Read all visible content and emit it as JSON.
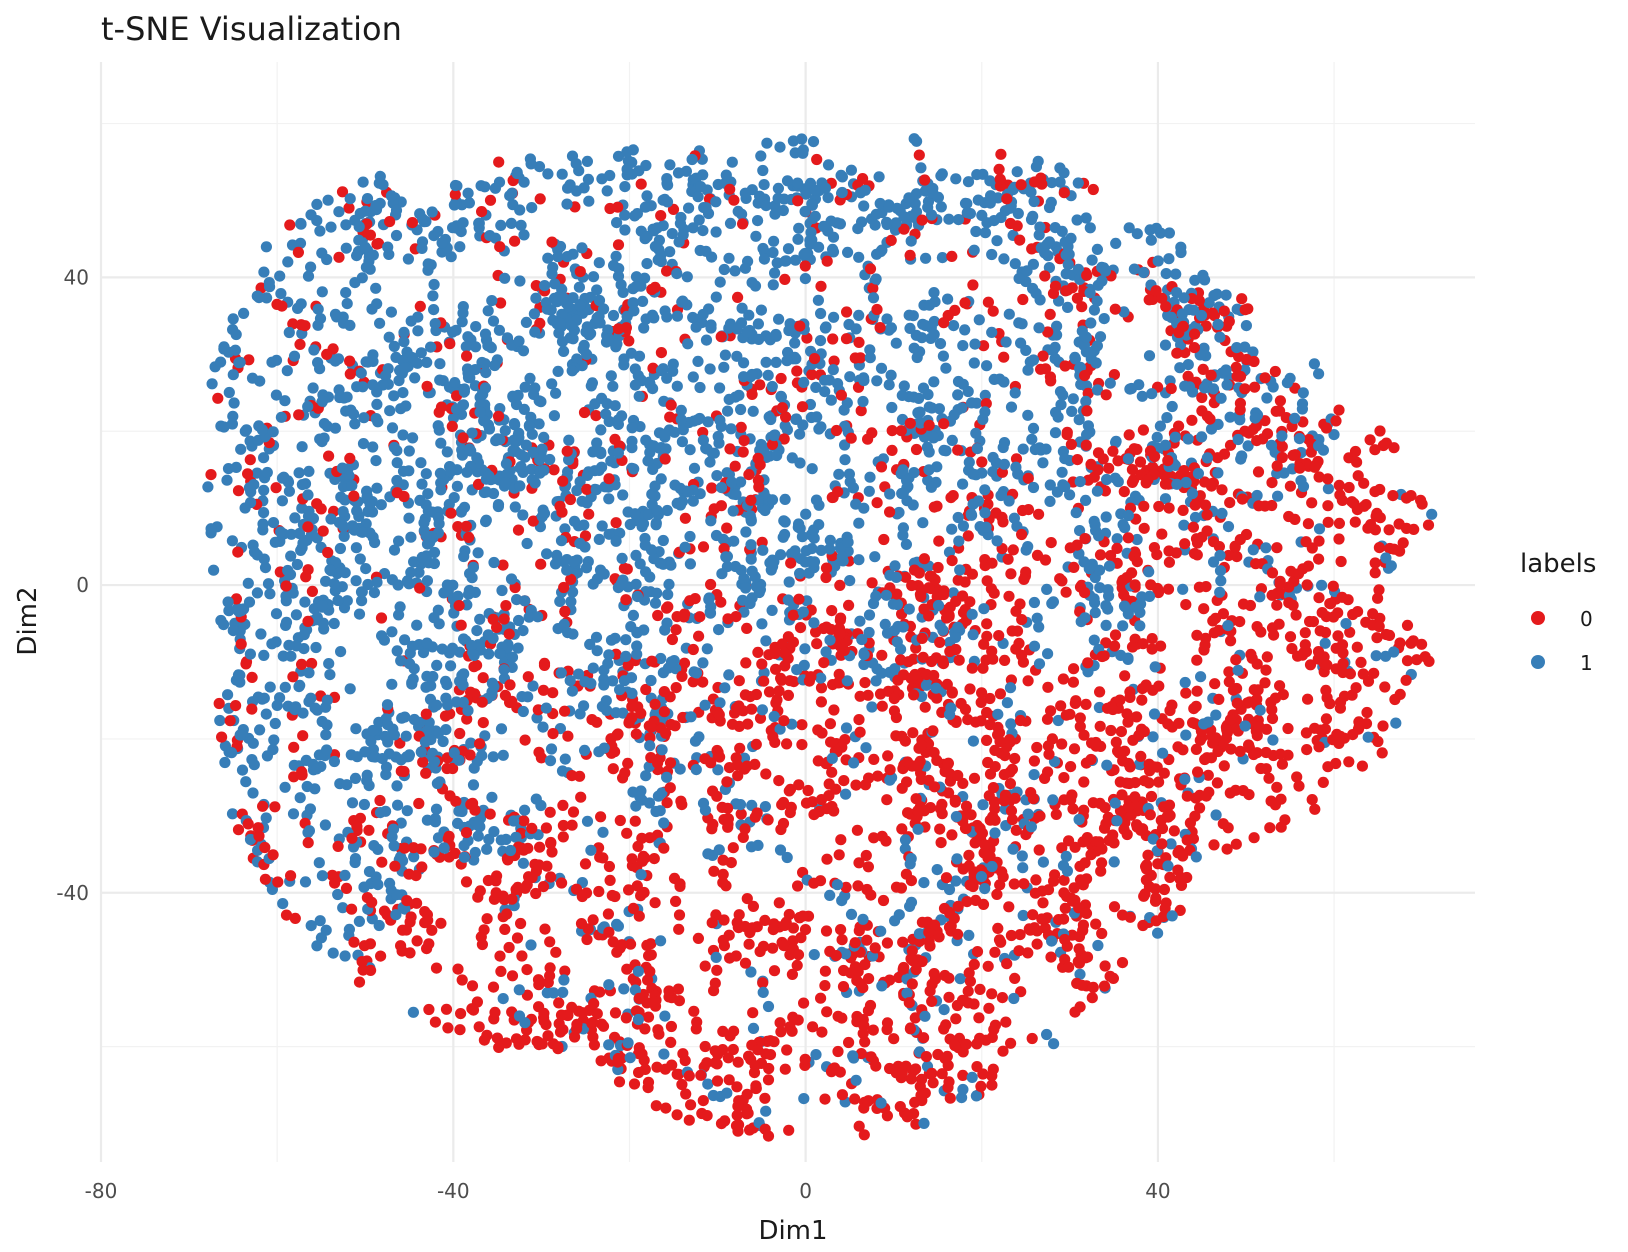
{
  "chart_data": {
    "type": "scatter",
    "title": "t-SNE Visualization",
    "xlabel": "Dim1",
    "ylabel": "Dim2",
    "xlim": [
      -80,
      76
    ],
    "ylim": [
      -75,
      68
    ],
    "x_ticks": [
      -80,
      -40,
      0,
      40
    ],
    "y_ticks": [
      -40,
      0,
      40
    ],
    "x_tick_labels": [
      "-80",
      "-40",
      "0",
      "40"
    ],
    "y_tick_labels": [
      "-40",
      "0",
      "40"
    ],
    "grid": true,
    "legend": {
      "title": "labels",
      "position": "right",
      "entries": [
        {
          "label": "0",
          "color": "#e41a1c"
        },
        {
          "label": "1",
          "color": "#377eb8"
        }
      ]
    },
    "series": [
      {
        "name": "0",
        "color": "#e41a1c",
        "n_points": 2600,
        "sample_points": [
          [
            45,
            12
          ],
          [
            50,
            20
          ],
          [
            48,
            -5
          ],
          [
            35,
            -25
          ],
          [
            40,
            -30
          ],
          [
            25,
            -40
          ],
          [
            10,
            -50
          ],
          [
            15,
            -60
          ],
          [
            5,
            -55
          ],
          [
            -10,
            -55
          ],
          [
            -20,
            -55
          ],
          [
            30,
            35
          ],
          [
            55,
            -15
          ],
          [
            60,
            -20
          ],
          [
            20,
            -30
          ],
          [
            0,
            -25
          ],
          [
            -20,
            -20
          ],
          [
            -40,
            25
          ],
          [
            -55,
            30
          ],
          [
            -70,
            8
          ],
          [
            -50,
            45
          ],
          [
            -20,
            55
          ],
          [
            10,
            55
          ],
          [
            30,
            50
          ]
        ]
      },
      {
        "name": "1",
        "color": "#377eb8",
        "n_points": 3400,
        "sample_points": [
          [
            -40,
            10
          ],
          [
            -50,
            0
          ],
          [
            -60,
            -10
          ],
          [
            -30,
            20
          ],
          [
            -20,
            30
          ],
          [
            -10,
            40
          ],
          [
            0,
            20
          ],
          [
            10,
            25
          ],
          [
            20,
            15
          ],
          [
            -25,
            -10
          ],
          [
            -15,
            -15
          ],
          [
            -70,
            -5
          ],
          [
            -65,
            -20
          ],
          [
            0,
            58
          ],
          [
            5,
            60
          ],
          [
            -50,
            25
          ],
          [
            -35,
            -35
          ],
          [
            25,
            5
          ],
          [
            35,
            15
          ],
          [
            60,
            0
          ],
          [
            55,
            -5
          ],
          [
            -45,
            -38
          ],
          [
            -25,
            45
          ],
          [
            15,
            45
          ]
        ]
      }
    ]
  }
}
